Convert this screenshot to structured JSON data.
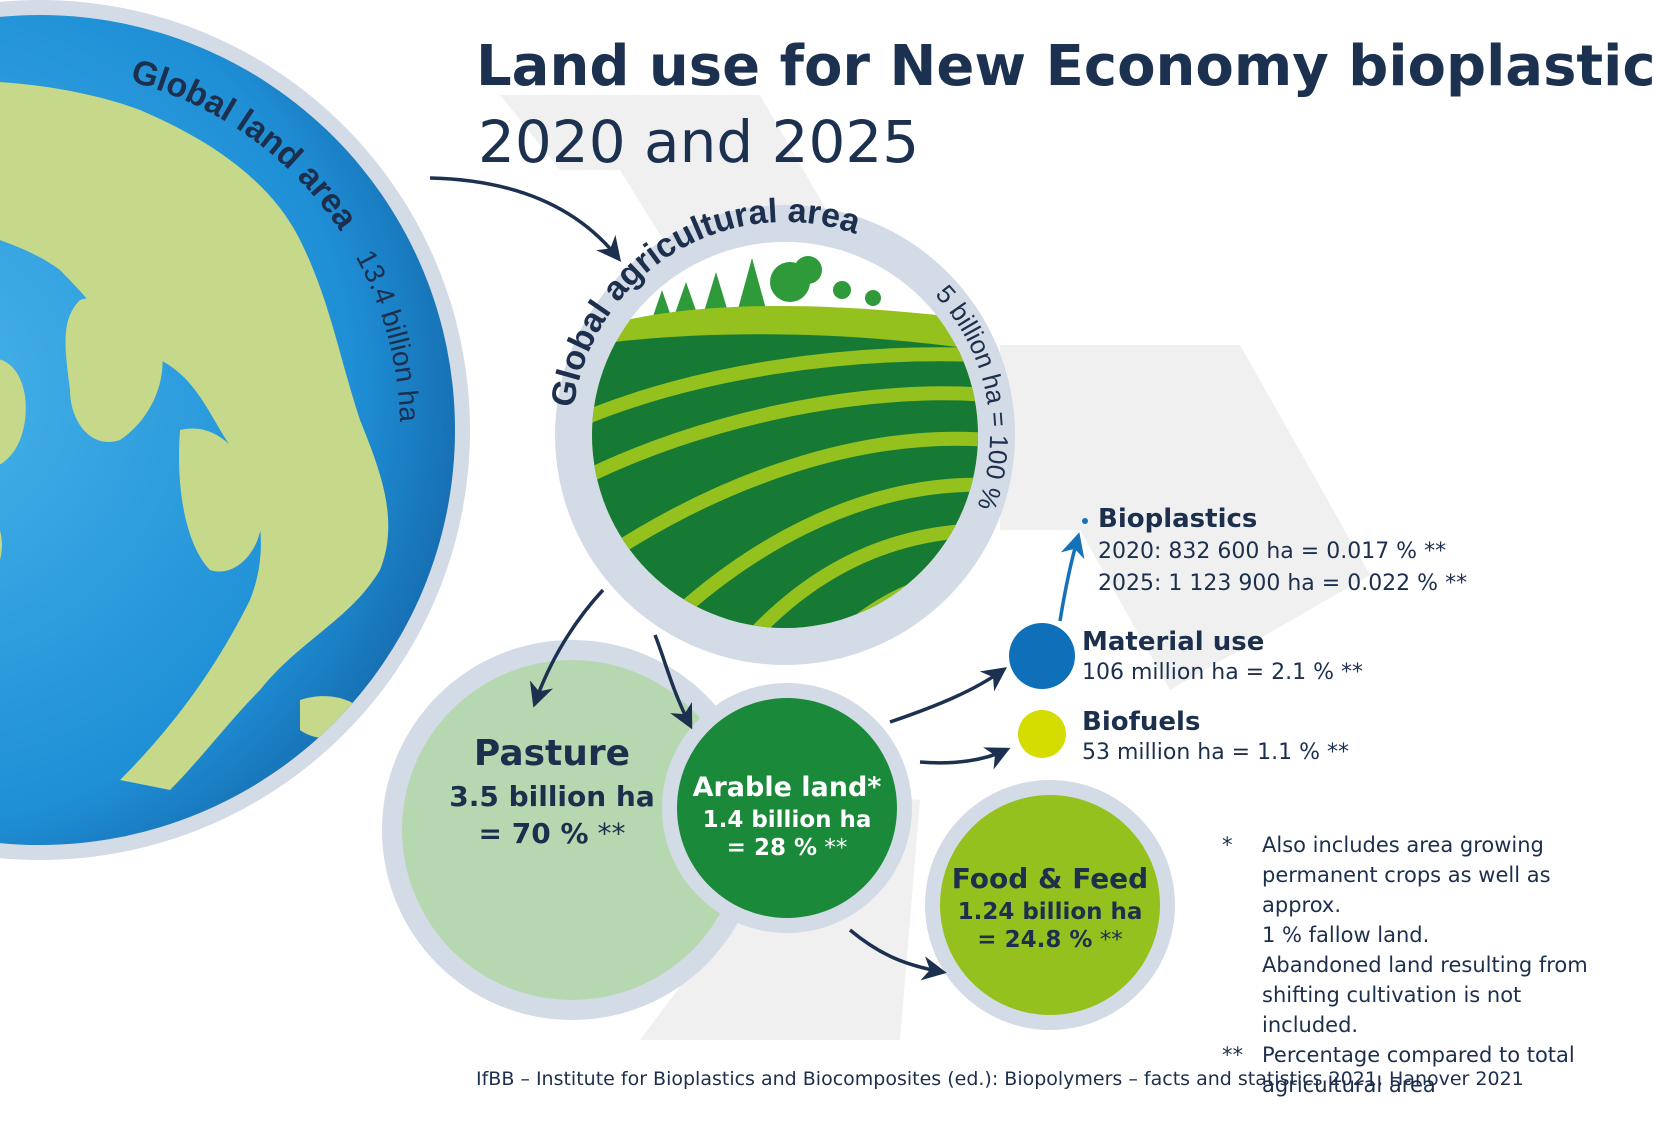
{
  "title": "Land use for New Economy bioplastics",
  "subtitle": "2020 and 2025",
  "global_land": {
    "label": "Global land area",
    "value": "13.4 billion ha"
  },
  "global_agri": {
    "label": "Global agricultural area",
    "value": "5 billion ha = 100 %"
  },
  "pasture": {
    "label": "Pasture",
    "value": "3.5 billion ha",
    "share": "= 70 %",
    "mark": "**"
  },
  "arable": {
    "label": "Arable land*",
    "value": "1.4 billion ha",
    "share": "= 28 %",
    "mark": "**"
  },
  "food_feed": {
    "label": "Food & Feed",
    "value": "1.24 billion ha",
    "share": "= 24.8 %",
    "mark": "**"
  },
  "material_use": {
    "label": "Material use",
    "value": "106 million ha = 2.1 % **"
  },
  "biofuels": {
    "label": "Biofuels",
    "value": "53 million ha = 1.1 % **"
  },
  "bioplastics": {
    "label": "Bioplastics",
    "line_2020": "2020: 832 600 ha = 0.017 % **",
    "line_2025": "2025: 1 123 900 ha = 0.022 % **"
  },
  "footnotes": [
    {
      "mark": "*",
      "lines": [
        "Also includes area growing",
        "permanent crops as well as approx.",
        "1 % fallow land.",
        "Abandoned land resulting from",
        "shifting cultivation is not included."
      ]
    },
    {
      "mark": "**",
      "lines": [
        "Percentage compared to total",
        "agricultural area"
      ]
    }
  ],
  "source": "IfBB – Institute for Bioplastics and Biocomposites (ed.): Biopolymers – facts and statistics 2021, Hanover 2021",
  "colors": {
    "navy": "#1c3150",
    "ring": "#d3dbe6",
    "ocean": "#1f8fd6",
    "land": "#c6d98a",
    "pasture": "#b6d8b0",
    "arable": "#1a8a3a",
    "food_feed": "#95c11f",
    "material_use": "#0f6fb8",
    "biofuels": "#d4dc00",
    "field_dark": "#167a34",
    "field_light": "#95c11f"
  }
}
